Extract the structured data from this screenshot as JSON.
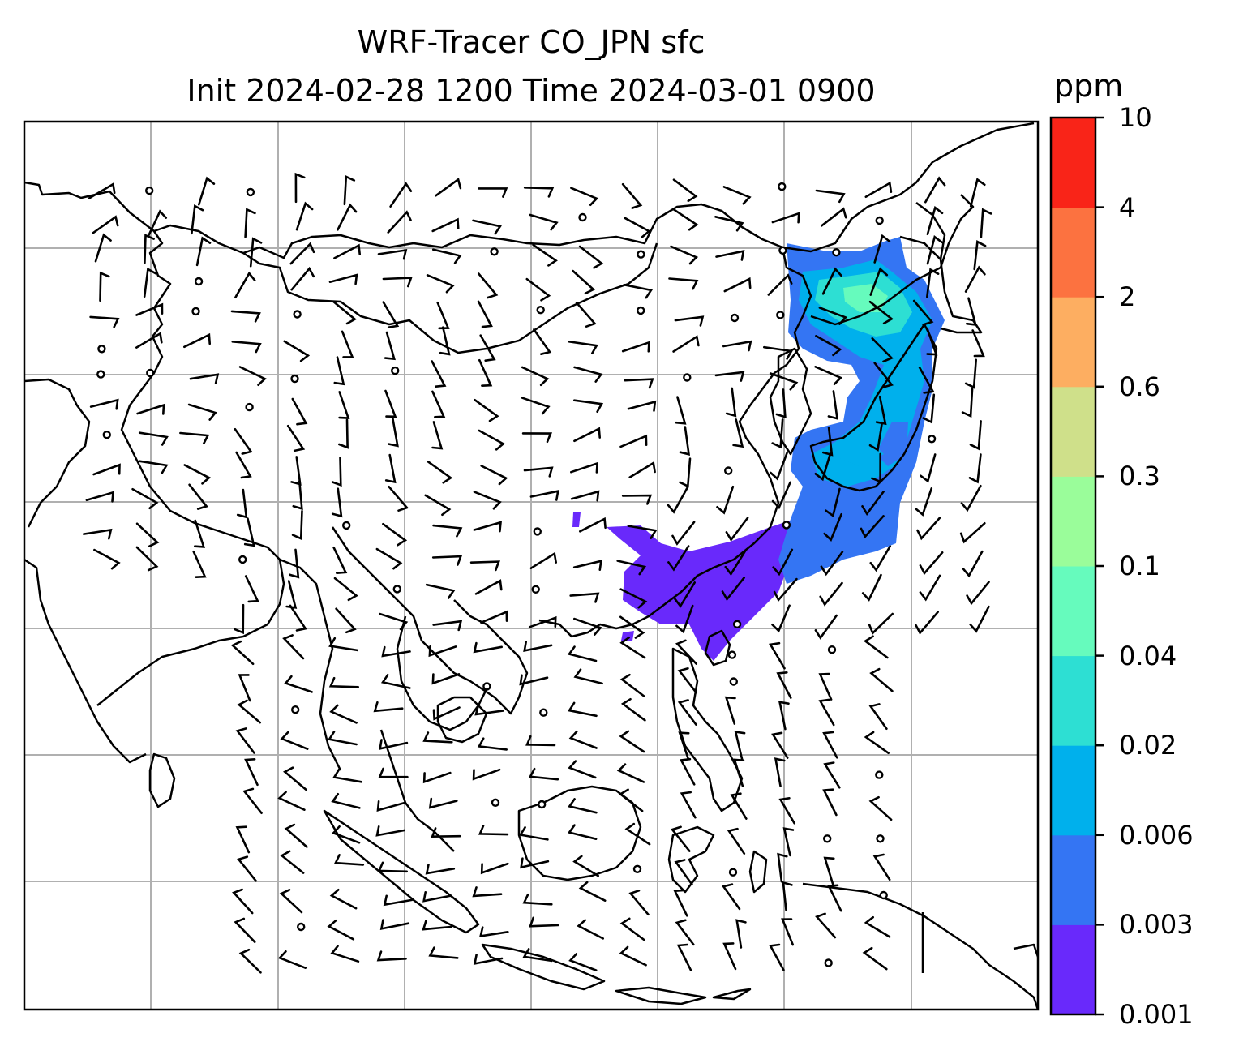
{
  "title": {
    "line1": "WRF-Tracer CO_JPN sfc",
    "line2": "Init 2024-02-28 1200 Time 2024-03-01 0900"
  },
  "colorbar": {
    "unit": "ppm",
    "levels": [
      "0.001",
      "0.003",
      "0.006",
      "0.02",
      "0.04",
      "0.1",
      "0.3",
      "0.6",
      "2",
      "4",
      "10"
    ],
    "colors": [
      "#6929fb",
      "#3475f3",
      "#00b0ec",
      "#2ddfd3",
      "#66fbbd",
      "#9afd9a",
      "#cfe08a",
      "#fdae61",
      "#fc7240",
      "#f92418"
    ]
  },
  "map": {
    "frame_color": "#000000",
    "gridline_color": "#b0b0b0",
    "coastline_color": "#000000",
    "wind_barb_color": "#000000",
    "tracer_plume_region": "Japan and East China coast",
    "features": [
      "coastlines",
      "country borders",
      "lat/lon gridlines",
      "wind barbs",
      "CO tracer shading"
    ]
  }
}
